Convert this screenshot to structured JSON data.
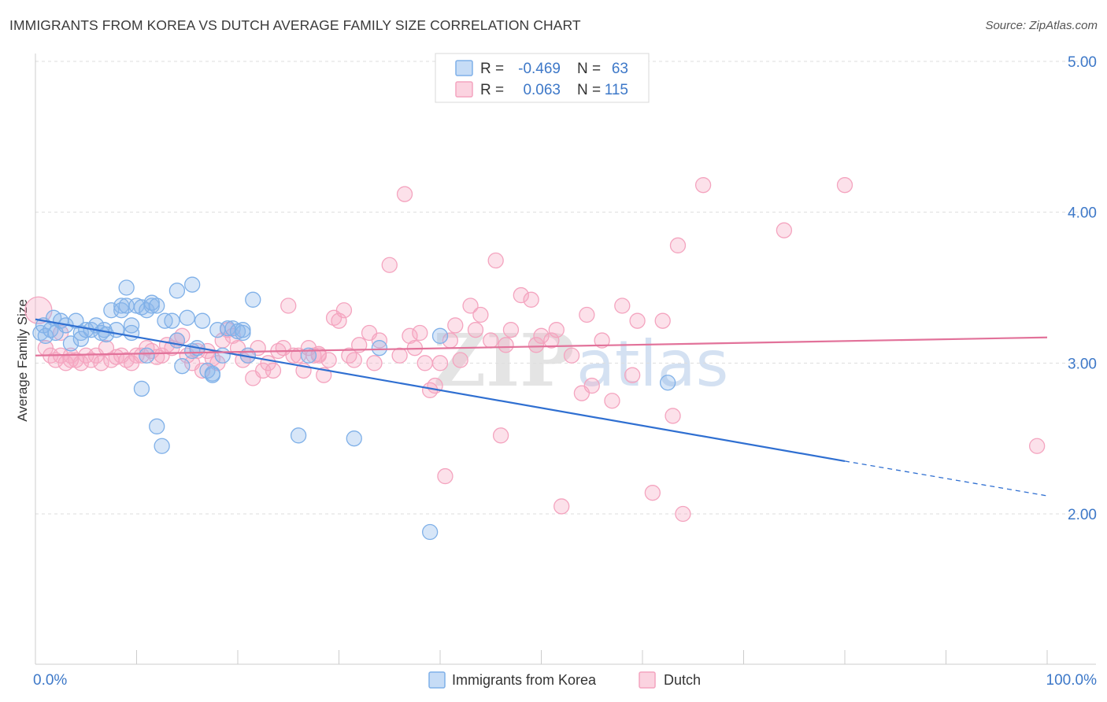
{
  "title": "IMMIGRANTS FROM KOREA VS DUTCH AVERAGE FAMILY SIZE CORRELATION CHART",
  "source": "Source: ZipAtlas.com",
  "watermark": "ZIPatlas",
  "colors": {
    "blue": "#7fb0e8",
    "blue_line": "#2f6fd1",
    "pink": "#f4a4bf",
    "pink_line": "#e2729a",
    "grid": "#dddddd",
    "axis_text": "#3d78c8"
  },
  "legend": {
    "rows": [
      {
        "r_label": "R =",
        "r_value": "-0.469",
        "n_label": "N =",
        "n_value": "63"
      },
      {
        "r_label": "R =",
        "r_value": "0.063",
        "n_label": "N =",
        "n_value": "115"
      }
    ]
  },
  "chart_data": {
    "type": "scatter",
    "title": "IMMIGRANTS FROM KOREA VS DUTCH AVERAGE FAMILY SIZE CORRELATION CHART",
    "xlabel": "",
    "ylabel": "Average Family Size",
    "xlim": [
      0,
      100
    ],
    "ylim": [
      1.0,
      5.1
    ],
    "x_tick_labels": [
      "0.0%",
      "100.0%"
    ],
    "y_ticks": [
      2.0,
      3.0,
      4.0,
      5.0
    ],
    "y_tick_labels": [
      "2.00",
      "3.00",
      "4.00",
      "5.00"
    ],
    "grid": true,
    "series": [
      {
        "name": "Immigrants from Korea",
        "color": "#7fb0e8",
        "r": -0.469,
        "n": 63,
        "trend": {
          "x0": 0,
          "y0": 3.29,
          "x1": 80,
          "y1": 2.35,
          "dashed_to_x": 100,
          "dashed_to_y": 2.12
        },
        "points": [
          [
            0.5,
            3.2
          ],
          [
            0.8,
            3.25
          ],
          [
            1.0,
            3.18
          ],
          [
            1.5,
            3.22
          ],
          [
            1.8,
            3.3
          ],
          [
            2.0,
            3.2
          ],
          [
            2.5,
            3.28
          ],
          [
            3,
            3.25
          ],
          [
            3.5,
            3.13
          ],
          [
            4,
            3.28
          ],
          [
            4.5,
            3.2
          ],
          [
            4.5,
            3.16
          ],
          [
            5,
            3.22
          ],
          [
            5.5,
            3.22
          ],
          [
            6,
            3.25
          ],
          [
            6.5,
            3.2
          ],
          [
            6.8,
            3.22
          ],
          [
            7,
            3.19
          ],
          [
            7.5,
            3.35
          ],
          [
            8,
            3.22
          ],
          [
            8.5,
            3.38
          ],
          [
            8.5,
            3.35
          ],
          [
            9,
            3.5
          ],
          [
            9,
            3.38
          ],
          [
            9.5,
            3.25
          ],
          [
            9.5,
            3.2
          ],
          [
            10,
            3.38
          ],
          [
            10.5,
            3.37
          ],
          [
            11,
            3.35
          ],
          [
            11.5,
            3.38
          ],
          [
            11.5,
            3.4
          ],
          [
            12,
            3.38
          ],
          [
            10.5,
            2.83
          ],
          [
            11,
            3.05
          ],
          [
            12,
            2.58
          ],
          [
            12.5,
            2.45
          ],
          [
            12.8,
            3.28
          ],
          [
            13.5,
            3.28
          ],
          [
            14,
            3.15
          ],
          [
            14,
            3.48
          ],
          [
            14.5,
            2.98
          ],
          [
            15,
            3.3
          ],
          [
            15.5,
            3.08
          ],
          [
            15.5,
            3.52
          ],
          [
            16,
            3.1
          ],
          [
            16.5,
            3.28
          ],
          [
            17,
            2.95
          ],
          [
            17.5,
            2.92
          ],
          [
            17.5,
            2.93
          ],
          [
            18,
            3.22
          ],
          [
            18.5,
            3.05
          ],
          [
            19,
            3.23
          ],
          [
            19.5,
            3.23
          ],
          [
            20,
            3.21
          ],
          [
            20.5,
            3.22
          ],
          [
            20.5,
            3.2
          ],
          [
            21,
            3.05
          ],
          [
            21.5,
            3.42
          ],
          [
            26,
            2.52
          ],
          [
            27,
            3.05
          ],
          [
            31.5,
            2.5
          ],
          [
            34,
            3.1
          ],
          [
            39,
            1.88
          ],
          [
            40,
            3.18
          ],
          [
            62.5,
            2.87
          ]
        ]
      },
      {
        "name": "Dutch",
        "color": "#f4a4bf",
        "r": 0.063,
        "n": 115,
        "trend": {
          "x0": 0,
          "y0": 3.05,
          "x1": 100,
          "y1": 3.17
        },
        "points": [
          [
            0.3,
            3.35
          ],
          [
            1,
            3.1
          ],
          [
            1.5,
            3.05
          ],
          [
            2,
            3.02
          ],
          [
            2.5,
            3.05
          ],
          [
            3,
            3.0
          ],
          [
            3.5,
            3.05
          ],
          [
            4,
            3.02
          ],
          [
            4.5,
            3.0
          ],
          [
            5,
            3.05
          ],
          [
            5.5,
            3.02
          ],
          [
            6,
            3.05
          ],
          [
            6.5,
            3.0
          ],
          [
            7,
            3.1
          ],
          [
            7.5,
            3.02
          ],
          [
            8,
            3.04
          ],
          [
            8.5,
            3.05
          ],
          [
            9,
            3.02
          ],
          [
            9.5,
            3.0
          ],
          [
            10,
            3.05
          ],
          [
            10.5,
            3.05
          ],
          [
            11,
            3.1
          ],
          [
            11.5,
            3.08
          ],
          [
            12,
            3.04
          ],
          [
            12.5,
            3.05
          ],
          [
            13,
            3.12
          ],
          [
            13.5,
            3.1
          ],
          [
            14,
            3.15
          ],
          [
            14.5,
            3.18
          ],
          [
            15,
            3.05
          ],
          [
            15.5,
            3.0
          ],
          [
            16,
            3.08
          ],
          [
            16.5,
            2.95
          ],
          [
            17,
            3.08
          ],
          [
            17.5,
            3.03
          ],
          [
            18,
            3.0
          ],
          [
            18.5,
            3.15
          ],
          [
            19,
            3.22
          ],
          [
            19.5,
            3.18
          ],
          [
            20,
            3.1
          ],
          [
            20.5,
            3.02
          ],
          [
            21,
            3.05
          ],
          [
            21.5,
            2.9
          ],
          [
            22,
            3.1
          ],
          [
            22.5,
            2.95
          ],
          [
            23,
            3.0
          ],
          [
            23.5,
            2.95
          ],
          [
            24,
            3.08
          ],
          [
            24.5,
            3.1
          ],
          [
            25,
            3.38
          ],
          [
            25.5,
            3.05
          ],
          [
            26,
            3.05
          ],
          [
            26.5,
            2.95
          ],
          [
            27,
            3.1
          ],
          [
            27.5,
            3.05
          ],
          [
            28,
            3.05
          ],
          [
            28.5,
            2.92
          ],
          [
            29,
            3.02
          ],
          [
            29.5,
            3.3
          ],
          [
            30,
            3.28
          ],
          [
            30.5,
            3.35
          ],
          [
            31,
            3.05
          ],
          [
            31.5,
            3.02
          ],
          [
            32,
            3.12
          ],
          [
            33,
            3.2
          ],
          [
            33.5,
            3.0
          ],
          [
            34,
            3.15
          ],
          [
            35,
            3.65
          ],
          [
            36,
            3.05
          ],
          [
            36.5,
            4.12
          ],
          [
            37,
            3.18
          ],
          [
            37.5,
            3.1
          ],
          [
            38,
            3.2
          ],
          [
            38.5,
            3.0
          ],
          [
            39,
            2.82
          ],
          [
            39.5,
            2.85
          ],
          [
            40,
            3.0
          ],
          [
            40.5,
            2.25
          ],
          [
            41,
            3.15
          ],
          [
            41.5,
            3.25
          ],
          [
            42,
            3.02
          ],
          [
            43,
            3.38
          ],
          [
            43.5,
            3.22
          ],
          [
            44,
            3.32
          ],
          [
            45,
            3.15
          ],
          [
            45.5,
            3.68
          ],
          [
            46,
            2.52
          ],
          [
            46.5,
            3.12
          ],
          [
            47,
            3.22
          ],
          [
            48,
            3.45
          ],
          [
            49,
            3.42
          ],
          [
            49.5,
            3.12
          ],
          [
            50,
            3.18
          ],
          [
            51,
            3.15
          ],
          [
            51.5,
            3.22
          ],
          [
            52,
            2.05
          ],
          [
            53,
            3.05
          ],
          [
            54,
            2.8
          ],
          [
            54.5,
            3.32
          ],
          [
            55,
            2.85
          ],
          [
            56,
            3.15
          ],
          [
            57,
            2.75
          ],
          [
            58,
            3.38
          ],
          [
            59,
            2.92
          ],
          [
            59.5,
            3.28
          ],
          [
            61,
            2.14
          ],
          [
            62,
            3.28
          ],
          [
            63,
            2.65
          ],
          [
            63.5,
            3.78
          ],
          [
            64,
            2.0
          ],
          [
            66,
            4.18
          ],
          [
            74,
            3.88
          ],
          [
            80,
            4.18
          ],
          [
            99,
            2.45
          ],
          [
            2.5,
            3.2
          ],
          [
            3.5,
            3.02
          ],
          [
            28,
            3.06
          ]
        ]
      }
    ]
  },
  "bottom_legend": [
    {
      "label": "Immigrants from Korea",
      "color": "#7fb0e8"
    },
    {
      "label": "Dutch",
      "color": "#f4a4bf"
    }
  ]
}
